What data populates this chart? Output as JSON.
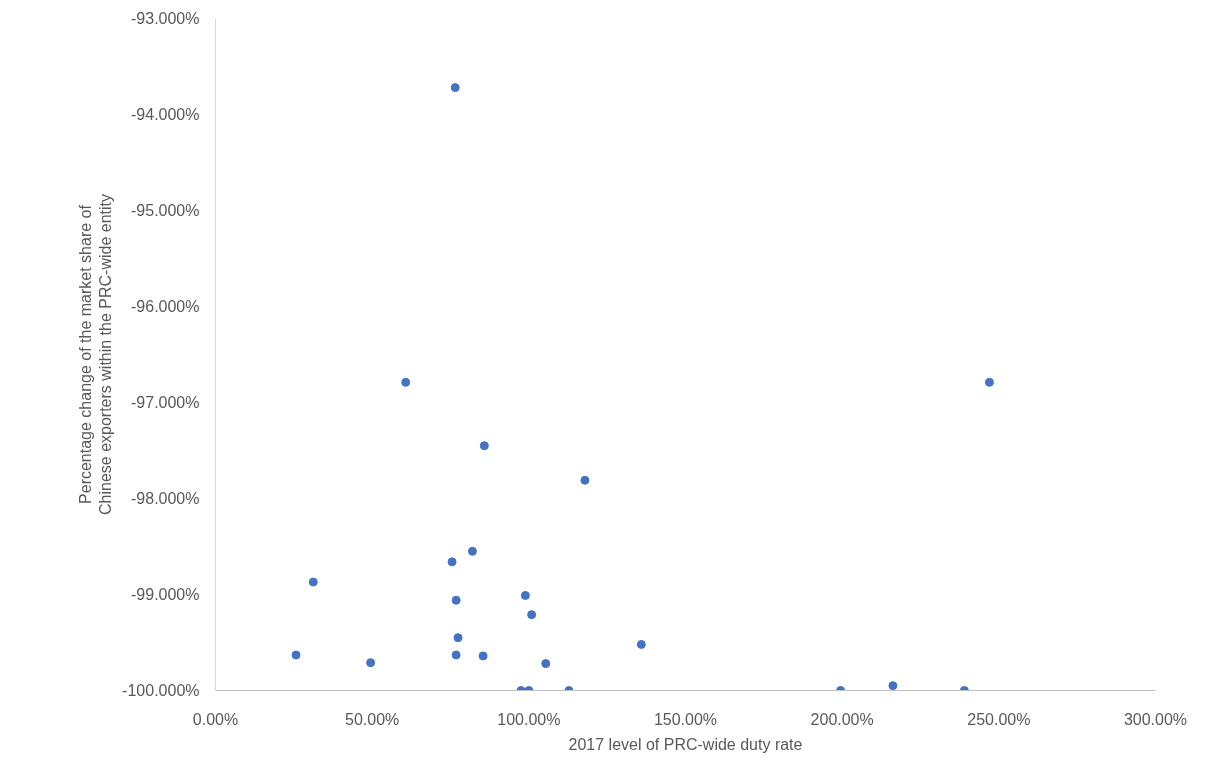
{
  "chart_data": {
    "type": "scatter",
    "xlabel": "2017 level of PRC-wide duty rate",
    "ylabel": "Percentage change of the market share of\nChinese exporters within the PRC-wide entity",
    "x": [
      76.5,
      60.7,
      247,
      85.8,
      117.9,
      31.2,
      75.5,
      82.0,
      76.8,
      98.9,
      100.9,
      77.4,
      135.9,
      25.7,
      49.5,
      76.8,
      85.4,
      105.4,
      97.5,
      100.0,
      112.8,
      199.5,
      216.2,
      239
    ],
    "series": [
      {
        "color": "#4472c4",
        "values": [
          -93.72,
          -96.79,
          -96.79,
          -97.45,
          -97.81,
          -98.87,
          -98.66,
          -98.55,
          -99.06,
          -99.01,
          -99.21,
          -99.45,
          -99.52,
          -99.63,
          -99.71,
          -99.63,
          -99.64,
          -99.72,
          -100,
          -100,
          -100,
          -100,
          -99.95,
          -100
        ]
      }
    ],
    "xlim": [
      0,
      300
    ],
    "ylim": [
      -100,
      -93
    ],
    "xticks": [
      {
        "value": 0,
        "label": "0.00%"
      },
      {
        "value": 50,
        "label": "50.00%"
      },
      {
        "value": 100,
        "label": "100.00%"
      },
      {
        "value": 150,
        "label": "150.00%"
      },
      {
        "value": 200,
        "label": "200.00%"
      },
      {
        "value": 250,
        "label": "250.00%"
      },
      {
        "value": 300,
        "label": "300.00%"
      }
    ],
    "yticks": [
      {
        "value": -100,
        "label": "-100.000%"
      },
      {
        "value": -99,
        "label": "-99.000%"
      },
      {
        "value": -98,
        "label": "-98.000%"
      },
      {
        "value": -97,
        "label": "-97.000%"
      },
      {
        "value": -96,
        "label": "-96.000%"
      },
      {
        "value": -95,
        "label": "-95.000%"
      },
      {
        "value": -94,
        "label": "-94.000%"
      },
      {
        "value": -93,
        "label": "-93.000%"
      }
    ],
    "grid": false,
    "marker": "circle"
  }
}
